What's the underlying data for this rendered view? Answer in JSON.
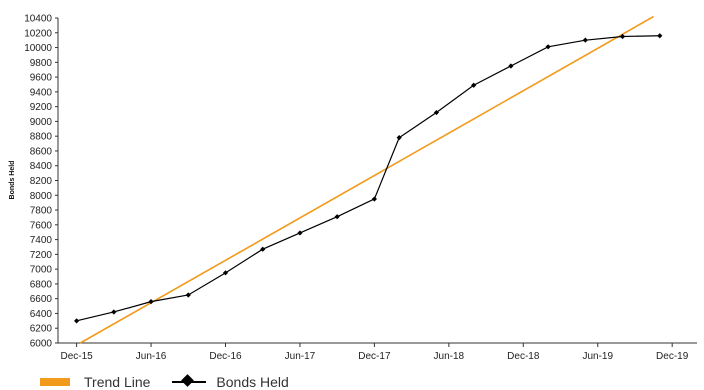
{
  "chart_data": {
    "type": "line",
    "xlabel": "",
    "ylabel": "Bonds Held",
    "ylim": [
      6000,
      10400
    ],
    "yticks": [
      6000,
      6200,
      6400,
      6600,
      6800,
      7000,
      7200,
      7400,
      7600,
      7800,
      8000,
      8200,
      8400,
      8600,
      8800,
      9000,
      9200,
      9400,
      9600,
      9800,
      10000,
      10200,
      10400
    ],
    "x_tick_labels": [
      "Dec-15",
      "Jun-16",
      "Dec-16",
      "Jun-17",
      "Dec-17",
      "Jun-18",
      "Dec-18",
      "Jun-19",
      "Dec-19"
    ],
    "x_tick_months": [
      0,
      6,
      12,
      18,
      24,
      30,
      36,
      42,
      48
    ],
    "xlim_months": [
      -1.5,
      50
    ],
    "series": [
      {
        "name": "Bonds Held",
        "color": "#000000",
        "marker": "diamond",
        "x_months": [
          0,
          3,
          6,
          9,
          12,
          15,
          18,
          21,
          24,
          26,
          29,
          32,
          35,
          38,
          41,
          44,
          47
        ],
        "values": [
          6300,
          6420,
          6560,
          6650,
          6950,
          7270,
          7490,
          7710,
          7950,
          8780,
          9120,
          9490,
          9750,
          10010,
          10100,
          10150,
          10160
        ]
      },
      {
        "name": "Trend Line",
        "color": "#f29a1b",
        "marker": "none",
        "x_months": [
          0.3,
          46.5
        ],
        "values": [
          6000,
          10420
        ]
      }
    ],
    "legend": {
      "position": "bottom-left",
      "items": [
        {
          "label": "Trend Line",
          "color": "#f29a1b",
          "style": "swatch"
        },
        {
          "label": "Bonds Held",
          "color": "#000000",
          "style": "line-diamond"
        }
      ]
    },
    "grid": false
  }
}
